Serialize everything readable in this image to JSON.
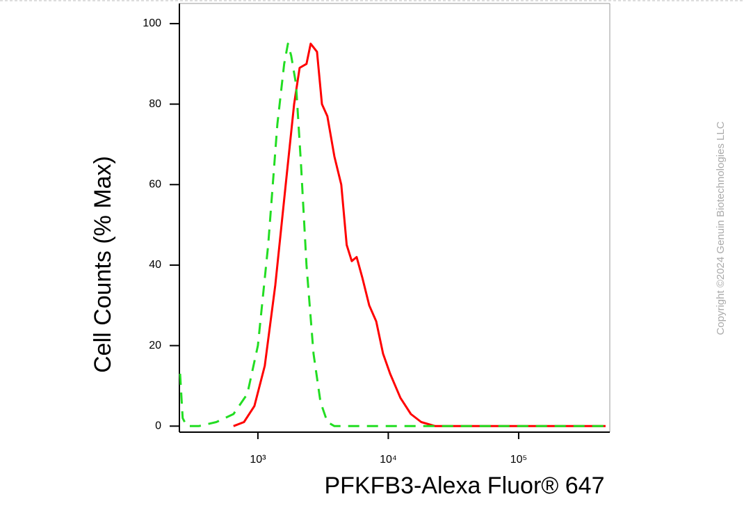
{
  "chart_data": {
    "type": "line",
    "xlabel": "PFKFB3-Alexa Fluor® 647",
    "ylabel": "Cell Counts (% Max)",
    "watermark": "Copyright ©2024 Genuin Biotechnologies LLC",
    "xscale": "log",
    "xlim": [
      250,
      500000
    ],
    "ylim": [
      -1.5,
      105
    ],
    "xticks": [
      {
        "value": 1000,
        "label": "10³"
      },
      {
        "value": 10000,
        "label": "10⁴"
      },
      {
        "value": 100000,
        "label": "10⁵"
      }
    ],
    "yticks": [
      0,
      20,
      40,
      60,
      80,
      100
    ],
    "series": [
      {
        "color": "#ff0000",
        "dashed": false,
        "x": [
          650,
          782,
          940,
          1130,
          1360,
          1635,
          1895,
          2090,
          2360,
          2540,
          2840,
          3100,
          3410,
          3860,
          4360,
          4800,
          5250,
          5720,
          6310,
          7140,
          8080,
          9120,
          10330,
          12400,
          14900,
          17900,
          22900,
          31000,
          57600,
          196000,
          464000
        ],
        "values": [
          0,
          1,
          5,
          15,
          35,
          60,
          80,
          89,
          90,
          95,
          93,
          80,
          77,
          67,
          60,
          45,
          41,
          42,
          37,
          30,
          26,
          18,
          13,
          7,
          3,
          1,
          0,
          0,
          0,
          0,
          0
        ]
      },
      {
        "color": "#22dd22",
        "dashed": true,
        "x": [
          253,
          265,
          285,
          352,
          480,
          650,
          830,
          1000,
          1200,
          1410,
          1590,
          1700,
          1800,
          1960,
          2140,
          2360,
          2670,
          3020,
          3410,
          3860,
          16800,
          464000
        ],
        "values": [
          13,
          2,
          0,
          0,
          1,
          3,
          8,
          20,
          45,
          75,
          90,
          95,
          92,
          85,
          65,
          40,
          18,
          6,
          1,
          0,
          0,
          0
        ]
      }
    ]
  }
}
